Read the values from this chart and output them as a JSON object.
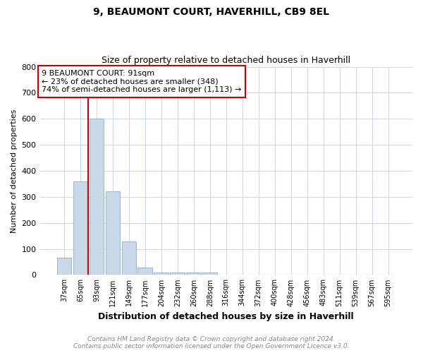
{
  "title": "9, BEAUMONT COURT, HAVERHILL, CB9 8EL",
  "subtitle": "Size of property relative to detached houses in Haverhill",
  "xlabel": "Distribution of detached houses by size in Haverhill",
  "ylabel": "Number of detached properties",
  "footer_line1": "Contains HM Land Registry data © Crown copyright and database right 2024.",
  "footer_line2": "Contains public sector information licensed under the Open Government Licence v3.0.",
  "categories": [
    "37sqm",
    "65sqm",
    "93sqm",
    "121sqm",
    "149sqm",
    "177sqm",
    "204sqm",
    "232sqm",
    "260sqm",
    "288sqm",
    "316sqm",
    "344sqm",
    "372sqm",
    "400sqm",
    "428sqm",
    "456sqm",
    "483sqm",
    "511sqm",
    "539sqm",
    "567sqm",
    "595sqm"
  ],
  "values": [
    65,
    358,
    600,
    320,
    130,
    28,
    10,
    8,
    8,
    10,
    0,
    0,
    0,
    0,
    0,
    0,
    0,
    0,
    0,
    0,
    0
  ],
  "bar_color": "#c9d9e8",
  "bar_edge_color": "#a0b8d0",
  "vline_color": "#cc0000",
  "vline_x_index": 2,
  "ylim": [
    0,
    800
  ],
  "yticks": [
    0,
    100,
    200,
    300,
    400,
    500,
    600,
    700,
    800
  ],
  "annotation_line1": "9 BEAUMONT COURT: 91sqm",
  "annotation_line2": "← 23% of detached houses are smaller (348)",
  "annotation_line3": "74% of semi-detached houses are larger (1,113) →",
  "annotation_box_color": "#ffffff",
  "annotation_box_edgecolor": "#cc0000",
  "bg_color": "#ffffff",
  "grid_color": "#d0d8e8"
}
